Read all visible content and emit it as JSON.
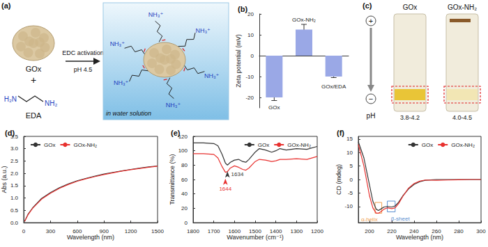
{
  "chart_data": [
    {
      "type": "bar",
      "title": "(b)",
      "ylabel": "Zeta potential (mV)",
      "categories": [
        "GOx",
        "GOx-NH₂",
        "GOx/EDA"
      ],
      "values": [
        -20,
        12.5,
        -10
      ],
      "errors": [
        1.5,
        2.5,
        0.5
      ],
      "color": "#9aa8e6",
      "ylim": [
        -25,
        20
      ],
      "yticks": [
        -20,
        -10,
        0,
        10,
        20
      ],
      "grid": false,
      "tick_labels": "y"
    },
    {
      "type": "line",
      "title": "(d)",
      "xlabel": "Wavelength (nm)",
      "ylabel": "Abs (a.u.)",
      "x": [
        10,
        50,
        100,
        200,
        300,
        400,
        500,
        600,
        700,
        800,
        900,
        1000,
        1100,
        1200,
        1300,
        1400,
        1500
      ],
      "series": [
        {
          "name": "GOx",
          "color": "#333333",
          "values": [
            0.05,
            0.35,
            0.6,
            0.98,
            1.22,
            1.42,
            1.57,
            1.7,
            1.8,
            1.89,
            1.97,
            2.04,
            2.1,
            2.16,
            2.21,
            2.26,
            2.3
          ]
        },
        {
          "name": "GOx-NH₂",
          "color": "#e8312f",
          "values": [
            0.05,
            0.33,
            0.58,
            0.95,
            1.19,
            1.39,
            1.55,
            1.68,
            1.78,
            1.87,
            1.95,
            2.02,
            2.09,
            2.15,
            2.2,
            2.25,
            2.29
          ]
        }
      ],
      "xlim": [
        0,
        1500
      ],
      "xticks": [
        0,
        300,
        600,
        900,
        1200,
        1500
      ],
      "ylim": [
        0,
        3.5
      ],
      "yticks": [
        {
          "value": 0,
          "label": "0.0"
        },
        0.5,
        {
          "value": 1,
          "label": "1.0"
        },
        1.5,
        {
          "value": 2,
          "label": "2.0"
        },
        2.5,
        {
          "value": 3,
          "label": "3.0"
        },
        3.5
      ],
      "legend": "upper left",
      "grid": false
    },
    {
      "type": "line",
      "title": "(e)",
      "xlabel": "Wavenumber (cm⁻¹)",
      "ylabel": "Transmittance (%)",
      "x": [
        1800,
        1750,
        1700,
        1680,
        1660,
        1644,
        1634,
        1620,
        1600,
        1580,
        1560,
        1545,
        1530,
        1500,
        1480,
        1450,
        1420,
        1400,
        1380,
        1350,
        1300,
        1250,
        1200
      ],
      "series": [
        {
          "name": "GOx",
          "color": "#333333",
          "values": [
            111,
            111,
            110,
            107,
            95,
            83,
            80,
            84,
            87,
            88,
            85,
            84,
            88,
            98,
            103,
            101,
            98,
            100,
            103,
            101,
            103,
            102,
            106
          ]
        },
        {
          "name": "GOx-NH₂",
          "color": "#e8312f",
          "values": [
            96,
            96,
            95,
            90,
            78,
            70,
            71,
            76,
            79,
            77,
            74,
            73,
            76,
            85,
            88,
            87,
            85,
            86,
            88,
            88,
            89,
            88,
            92
          ]
        }
      ],
      "xlim": [
        1800,
        1200
      ],
      "xticks": [
        1800,
        1700,
        1600,
        1500,
        1400,
        1300,
        1200
      ],
      "ylim": [
        0,
        120
      ],
      "yticks": [
        0,
        20,
        40,
        60,
        80,
        100,
        120
      ],
      "annotations": [
        {
          "text": "1644",
          "x": 1644,
          "y": 70,
          "color": "#e8312f"
        },
        {
          "text": "1634",
          "x": 1634,
          "y": 80,
          "color": "#333333"
        }
      ],
      "legend": "upper right",
      "grid": false
    },
    {
      "type": "line",
      "title": "(f)",
      "xlabel": "Wavelength (nm)",
      "ylabel": "CD (mdeg)",
      "x": [
        190,
        195,
        200,
        203,
        206,
        208,
        210,
        213,
        216,
        220,
        223,
        226,
        230,
        235,
        240,
        245,
        250,
        260,
        270,
        280,
        290,
        300
      ],
      "series": [
        {
          "name": "GOx",
          "color": "#333333",
          "values": [
            14,
            8,
            -2,
            -8,
            -11,
            -11.5,
            -11,
            -10.2,
            -10,
            -10.2,
            -9.8,
            -8.5,
            -6,
            -3.5,
            -1.8,
            -0.8,
            -0.3,
            0,
            0,
            0,
            0,
            0
          ]
        },
        {
          "name": "GOx-NH₂",
          "color": "#e8312f",
          "values": [
            13,
            5,
            -6,
            -10.5,
            -12.5,
            -12.5,
            -12,
            -11,
            -10.5,
            -10.8,
            -10.5,
            -9,
            -6.2,
            -3.2,
            -1.5,
            -0.6,
            -0.2,
            -0.3,
            -0.2,
            -0.1,
            0,
            0
          ]
        }
      ],
      "xlim": [
        190,
        300
      ],
      "xticks": [
        200,
        220,
        240,
        260,
        280,
        300
      ],
      "ylim": [
        -16,
        16
      ],
      "yticks": [
        -10,
        -5,
        0,
        5,
        10,
        15
      ],
      "annotations": [
        {
          "text": "α-helix",
          "x": [
            205,
            211
          ],
          "y": [
            -12.5,
            -8.5
          ],
          "color": "#f0a050"
        },
        {
          "text": "β-sheet",
          "x": [
            216,
            223
          ],
          "y": [
            -12,
            -8
          ],
          "color": "#5b8fd0"
        }
      ],
      "legend": "upper right",
      "grid": false
    }
  ],
  "diagram": {
    "a": {
      "label": "(a)",
      "reactants": [
        "GOx",
        "EDA"
      ],
      "plus": "+",
      "eda_groups": [
        "H₂N",
        "NH₂"
      ],
      "arrow_above": "EDC activation",
      "arrow_below": "pH 4.5",
      "product_group": "NH₃⁺",
      "scene": "in water solution"
    },
    "c": {
      "label": "(c)",
      "electrodes": [
        "+",
        "−"
      ],
      "ph_label": "pH",
      "tubes": [
        {
          "name": "GOx",
          "ph": "3.8-4.2"
        },
        {
          "name": "GOx-NH₂",
          "ph": "4.0-4.5"
        }
      ]
    }
  }
}
